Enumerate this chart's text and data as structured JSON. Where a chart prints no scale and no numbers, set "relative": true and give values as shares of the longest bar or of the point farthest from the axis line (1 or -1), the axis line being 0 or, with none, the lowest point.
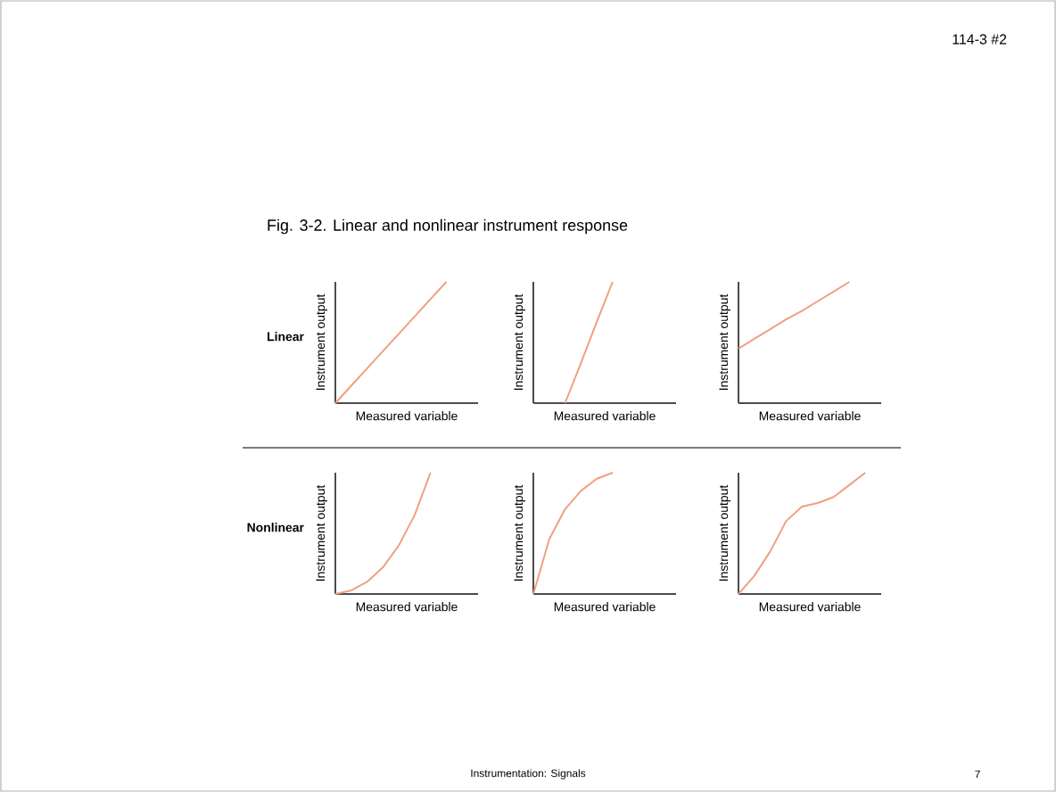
{
  "chart_data": [
    {
      "type": "line",
      "title": "Fig. 3-2.  Linear and nonlinear instrument response",
      "xlabel": "Measured variable",
      "ylabel": "Instrument output",
      "relative": true,
      "tick_labels": false,
      "categories": [
        null,
        null,
        null,
        null,
        null,
        null,
        null,
        null,
        null,
        null
      ],
      "annotations": [
        "Linear",
        "114-3 #2",
        "Instrumentation: Signals",
        "7"
      ],
      "series": [
        {
          "color": "#f0a080",
          "values": [
            0,
            0.143,
            0.286,
            0.429,
            0.571,
            0.714,
            0.857,
            1,
            null,
            null
          ]
        }
      ]
    },
    {
      "type": "line",
      "xlabel": "Measured variable",
      "ylabel": "Instrument output",
      "relative": true,
      "tick_labels": false,
      "categories": [
        null,
        null,
        null,
        null,
        null,
        null,
        null,
        null,
        null,
        null
      ],
      "series": [
        {
          "color": "#f0a080",
          "values": [
            null,
            null,
            0,
            0.33,
            0.67,
            1,
            null,
            null,
            null,
            null
          ]
        }
      ]
    },
    {
      "type": "line",
      "xlabel": "Measured variable",
      "ylabel": "Instrument output",
      "relative": true,
      "tick_labels": false,
      "categories": [
        null,
        null,
        null,
        null,
        null,
        null,
        null,
        null,
        null,
        null
      ],
      "series": [
        {
          "color": "#f0a080",
          "values": [
            0.45,
            0.53,
            0.61,
            0.69,
            0.76,
            0.84,
            0.92,
            1,
            null,
            null
          ]
        }
      ]
    },
    {
      "type": "line",
      "xlabel": "Measured variable",
      "ylabel": "Instrument output",
      "relative": true,
      "tick_labels": false,
      "categories": [
        null,
        null,
        null,
        null,
        null,
        null,
        null,
        null,
        null,
        null
      ],
      "annotations": [
        "Nonlinear"
      ],
      "series": [
        {
          "color": "#f0a080",
          "values": [
            0,
            0.03,
            0.1,
            0.22,
            0.4,
            0.65,
            1,
            null,
            null,
            null
          ]
        }
      ]
    },
    {
      "type": "line",
      "xlabel": "Measured variable",
      "ylabel": "Instrument output",
      "relative": true,
      "tick_labels": false,
      "categories": [
        null,
        null,
        null,
        null,
        null,
        null,
        null,
        null,
        null,
        null
      ],
      "series": [
        {
          "color": "#f0a080",
          "values": [
            0,
            0.45,
            0.7,
            0.85,
            0.95,
            1,
            null,
            null,
            null,
            null
          ]
        }
      ]
    },
    {
      "type": "line",
      "xlabel": "Measured variable",
      "ylabel": "Instrument output",
      "relative": true,
      "tick_labels": false,
      "categories": [
        null,
        null,
        null,
        null,
        null,
        null,
        null,
        null,
        null,
        null
      ],
      "series": [
        {
          "color": "#f0a080",
          "values": [
            0,
            0.15,
            0.35,
            0.6,
            0.72,
            0.75,
            0.8,
            0.9,
            1,
            null
          ]
        }
      ]
    }
  ]
}
